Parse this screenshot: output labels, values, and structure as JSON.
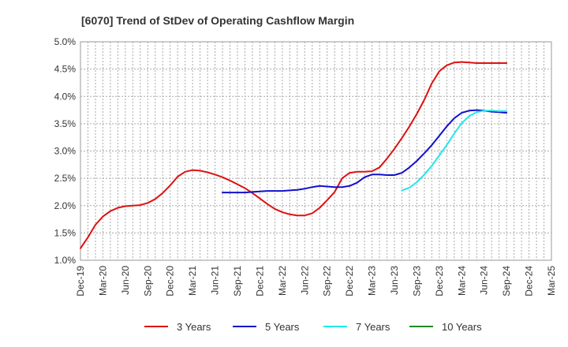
{
  "chart_data": {
    "type": "line",
    "title": "[6070]  Trend of StDev of Operating Cashflow Margin",
    "xlabel": "",
    "ylabel": "",
    "ylim": [
      1.0,
      5.0
    ],
    "y_ticks": [
      "1.0%",
      "1.5%",
      "2.0%",
      "2.5%",
      "3.0%",
      "3.5%",
      "4.0%",
      "4.5%",
      "5.0%"
    ],
    "y_tick_values": [
      1.0,
      1.5,
      2.0,
      2.5,
      3.0,
      3.5,
      4.0,
      4.5,
      5.0
    ],
    "x_ticks": [
      "Dec-19",
      "Mar-20",
      "Jun-20",
      "Sep-20",
      "Dec-20",
      "Mar-21",
      "Jun-21",
      "Sep-21",
      "Dec-21",
      "Mar-22",
      "Jun-22",
      "Sep-22",
      "Dec-22",
      "Mar-23",
      "Jun-23",
      "Sep-23",
      "Dec-23",
      "Mar-24",
      "Jun-24",
      "Sep-24",
      "Dec-24",
      "Mar-25"
    ],
    "x_range_months": [
      0,
      63
    ],
    "grid": true,
    "legend_position": "bottom",
    "series": [
      {
        "name": "3 Years",
        "color": "#dd1111",
        "x": [
          0,
          1,
          2,
          3,
          4,
          5,
          6,
          7,
          8,
          9,
          10,
          11,
          12,
          13,
          14,
          15,
          16,
          17,
          18,
          19,
          20,
          21,
          22,
          23,
          24,
          25,
          26,
          27,
          28,
          29,
          30,
          31,
          32,
          33,
          34,
          35,
          36,
          37,
          38,
          39,
          40,
          41,
          42,
          43,
          44,
          45,
          46,
          47,
          48,
          49,
          50,
          51,
          52,
          53,
          54,
          55,
          56,
          57
        ],
        "values": [
          1.22,
          1.42,
          1.65,
          1.8,
          1.9,
          1.96,
          1.99,
          2.0,
          2.01,
          2.05,
          2.12,
          2.23,
          2.37,
          2.53,
          2.62,
          2.65,
          2.64,
          2.61,
          2.57,
          2.52,
          2.46,
          2.39,
          2.32,
          2.23,
          2.13,
          2.03,
          1.94,
          1.88,
          1.84,
          1.82,
          1.82,
          1.86,
          1.96,
          2.1,
          2.25,
          2.5,
          2.6,
          2.62,
          2.62,
          2.63,
          2.7,
          2.86,
          3.04,
          3.24,
          3.45,
          3.68,
          3.94,
          4.24,
          4.46,
          4.57,
          4.62,
          4.63,
          4.62,
          4.61,
          4.61,
          4.61,
          4.61,
          4.61
        ]
      },
      {
        "name": "5 Years",
        "color": "#1111cc",
        "x": [
          19,
          20,
          21,
          22,
          23,
          24,
          25,
          26,
          27,
          28,
          29,
          30,
          31,
          32,
          33,
          34,
          35,
          36,
          37,
          38,
          39,
          40,
          41,
          42,
          43,
          44,
          45,
          46,
          47,
          48,
          49,
          50,
          51,
          52,
          53,
          54,
          55,
          56,
          57
        ],
        "values": [
          2.24,
          2.24,
          2.24,
          2.24,
          2.25,
          2.26,
          2.27,
          2.27,
          2.27,
          2.28,
          2.29,
          2.31,
          2.34,
          2.36,
          2.35,
          2.34,
          2.34,
          2.36,
          2.42,
          2.52,
          2.57,
          2.57,
          2.56,
          2.56,
          2.6,
          2.7,
          2.82,
          2.96,
          3.11,
          3.28,
          3.45,
          3.6,
          3.7,
          3.74,
          3.75,
          3.74,
          3.72,
          3.71,
          3.7
        ]
      },
      {
        "name": "7 Years",
        "color": "#22e6ee",
        "x": [
          43,
          44,
          45,
          46,
          47,
          48,
          49,
          50,
          51,
          52,
          53,
          54,
          55,
          56,
          57
        ],
        "values": [
          2.28,
          2.33,
          2.43,
          2.57,
          2.73,
          2.92,
          3.11,
          3.32,
          3.51,
          3.64,
          3.71,
          3.74,
          3.74,
          3.73,
          3.73
        ]
      },
      {
        "name": "10 Years",
        "color": "#228822",
        "x": [],
        "values": []
      }
    ]
  }
}
